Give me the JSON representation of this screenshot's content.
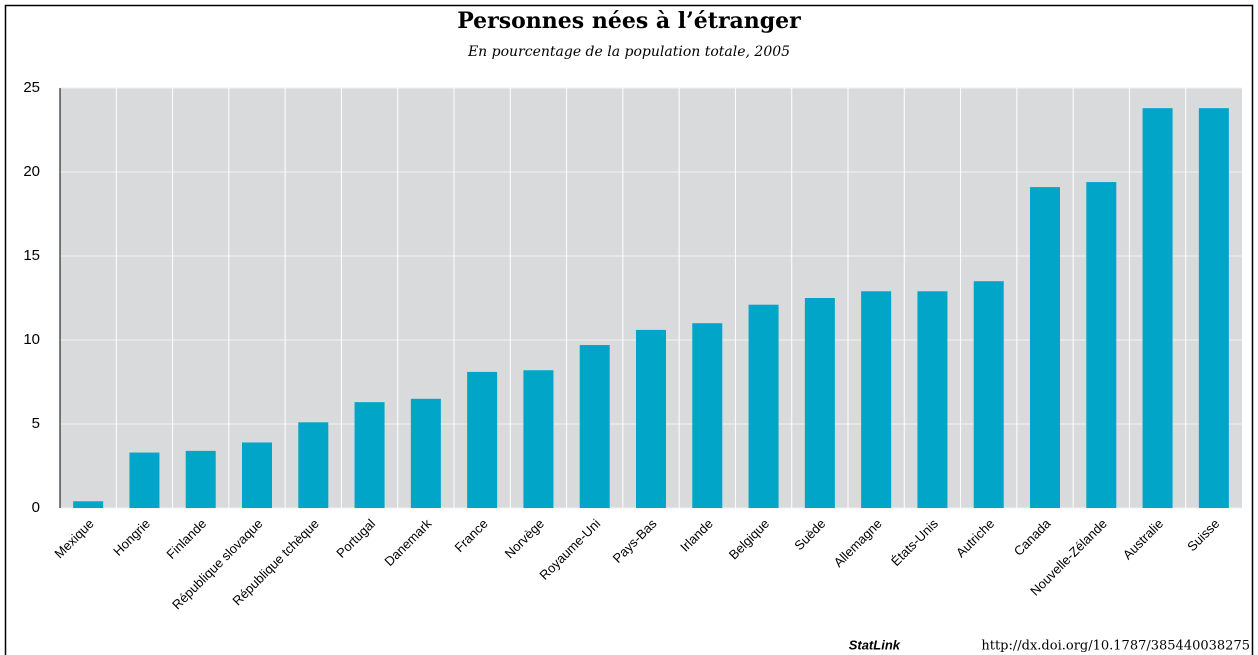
{
  "chart_data": {
    "type": "bar",
    "title": "Personnes nées à l’étranger",
    "subtitle": "En pourcentage de la population totale, 2005",
    "categories": [
      "Mexique",
      "Hongrie",
      "Finlande",
      "République slovaque",
      "République tchèque",
      "Portugal",
      "Danemark",
      "France",
      "Norvège",
      "Royaume-Uni",
      "Pays-Bas",
      "Irlande",
      "Belgique",
      "Suède",
      "Allemagne",
      "États-Unis",
      "Autriche",
      "Canada",
      "Nouvelle-Zélande",
      "Australie",
      "Suisse"
    ],
    "values": [
      0.4,
      3.3,
      3.4,
      3.9,
      5.1,
      6.3,
      6.5,
      8.1,
      8.2,
      9.7,
      10.6,
      11.0,
      12.1,
      12.5,
      12.9,
      12.9,
      13.5,
      19.1,
      19.4,
      23.8,
      23.8
    ],
    "color": "#00a5c8",
    "ylim": [
      0,
      25
    ],
    "yticks": [
      0,
      5,
      10,
      15,
      20,
      25
    ],
    "grid": true,
    "statlink": {
      "label": "StatLink",
      "url": "http://dx.doi.org/10.1787/385440038275"
    }
  }
}
